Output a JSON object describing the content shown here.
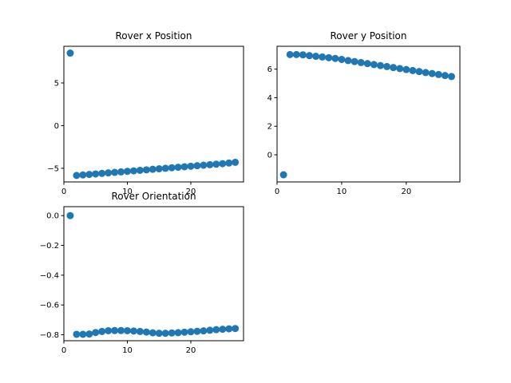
{
  "chart_data": [
    {
      "type": "scatter",
      "title": "Rover x Position",
      "xlabel": "",
      "ylabel": "",
      "marker_color": "#1f77b4",
      "xlim": [
        0,
        28.3
      ],
      "ylim": [
        -6.6,
        9.3
      ],
      "xticks": [
        0,
        10,
        20
      ],
      "xtick_labels": [
        "0",
        "10",
        "20"
      ],
      "yticks": [
        -5,
        0,
        5
      ],
      "ytick_labels": [
        "−5",
        "0",
        "5"
      ],
      "grid": false,
      "x": [
        1,
        2,
        3,
        4,
        5,
        6,
        7,
        8,
        9,
        10,
        11,
        12,
        13,
        14,
        15,
        16,
        17,
        18,
        19,
        20,
        21,
        22,
        23,
        24,
        25,
        26,
        27
      ],
      "y": [
        8.5,
        -5.84,
        -5.78,
        -5.72,
        -5.66,
        -5.6,
        -5.54,
        -5.48,
        -5.42,
        -5.36,
        -5.3,
        -5.24,
        -5.18,
        -5.12,
        -5.06,
        -5.0,
        -4.94,
        -4.88,
        -4.82,
        -4.76,
        -4.7,
        -4.64,
        -4.58,
        -4.52,
        -4.46,
        -4.38,
        -4.3
      ]
    },
    {
      "type": "scatter",
      "title": "Rover y Position",
      "xlabel": "",
      "ylabel": "",
      "marker_color": "#1f77b4",
      "xlim": [
        0,
        28.3
      ],
      "ylim": [
        -1.9,
        7.6
      ],
      "xticks": [
        0,
        10,
        20
      ],
      "xtick_labels": [
        "0",
        "10",
        "20"
      ],
      "yticks": [
        0,
        2,
        4,
        6
      ],
      "ytick_labels": [
        "0",
        "2",
        "4",
        "6"
      ],
      "grid": false,
      "x": [
        1,
        2,
        3,
        4,
        5,
        6,
        7,
        8,
        9,
        10,
        11,
        12,
        13,
        14,
        15,
        16,
        17,
        18,
        19,
        20,
        21,
        22,
        23,
        24,
        25,
        26,
        27
      ],
      "y": [
        -1.4,
        7.02,
        7.02,
        7.0,
        6.95,
        6.9,
        6.85,
        6.8,
        6.75,
        6.68,
        6.6,
        6.53,
        6.46,
        6.39,
        6.32,
        6.25,
        6.18,
        6.11,
        6.04,
        5.97,
        5.9,
        5.83,
        5.76,
        5.69,
        5.62,
        5.55,
        5.48
      ]
    },
    {
      "type": "scatter",
      "title": "Rover Orientation",
      "xlabel": "",
      "ylabel": "",
      "marker_color": "#1f77b4",
      "xlim": [
        0,
        28.3
      ],
      "ylim": [
        -0.84,
        0.06
      ],
      "xticks": [
        0,
        10,
        20
      ],
      "xtick_labels": [
        "0",
        "10",
        "20"
      ],
      "yticks": [
        0.0,
        -0.2,
        -0.4,
        -0.6,
        -0.8
      ],
      "ytick_labels": [
        "0.0",
        "−0.2",
        "−0.4",
        "−0.6",
        "−0.8"
      ],
      "grid": false,
      "x": [
        1,
        2,
        3,
        4,
        5,
        6,
        7,
        8,
        9,
        10,
        11,
        12,
        13,
        14,
        15,
        16,
        17,
        18,
        19,
        20,
        21,
        22,
        23,
        24,
        25,
        26,
        27
      ],
      "y": [
        0.0,
        -0.797,
        -0.797,
        -0.795,
        -0.785,
        -0.778,
        -0.773,
        -0.772,
        -0.772,
        -0.773,
        -0.775,
        -0.778,
        -0.782,
        -0.787,
        -0.79,
        -0.79,
        -0.788,
        -0.786,
        -0.783,
        -0.78,
        -0.777,
        -0.774,
        -0.77,
        -0.766,
        -0.763,
        -0.76,
        -0.758
      ]
    }
  ]
}
